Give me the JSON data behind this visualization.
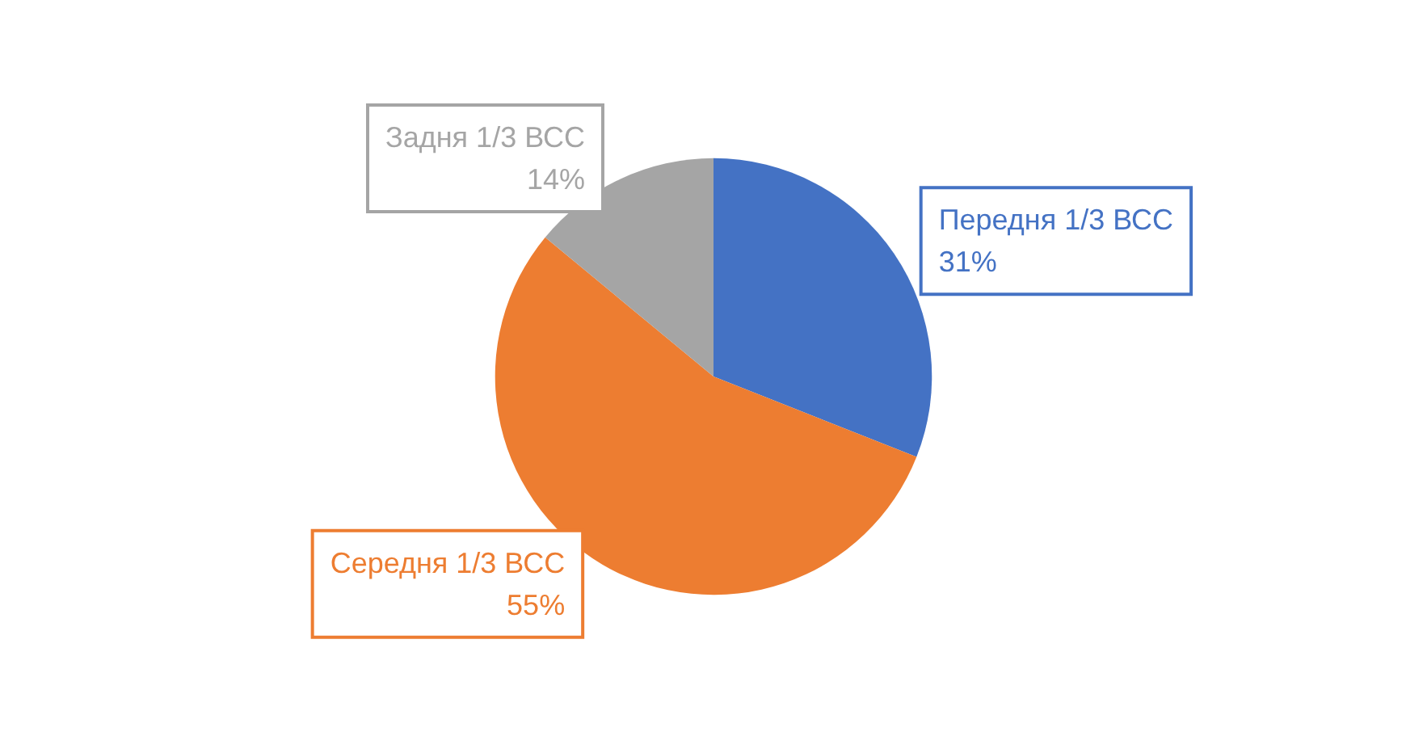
{
  "chart_data": {
    "type": "pie",
    "categories": [
      "Передня 1/3 ВСС",
      "Середня 1/3 ВСС",
      "Задня 1/3 ВСС"
    ],
    "values": [
      31,
      55,
      14
    ],
    "value_labels": [
      "31%",
      "55%",
      "14%"
    ],
    "colors": [
      "#4472c4",
      "#ed7d31",
      "#a5a5a5"
    ],
    "legend": false
  }
}
